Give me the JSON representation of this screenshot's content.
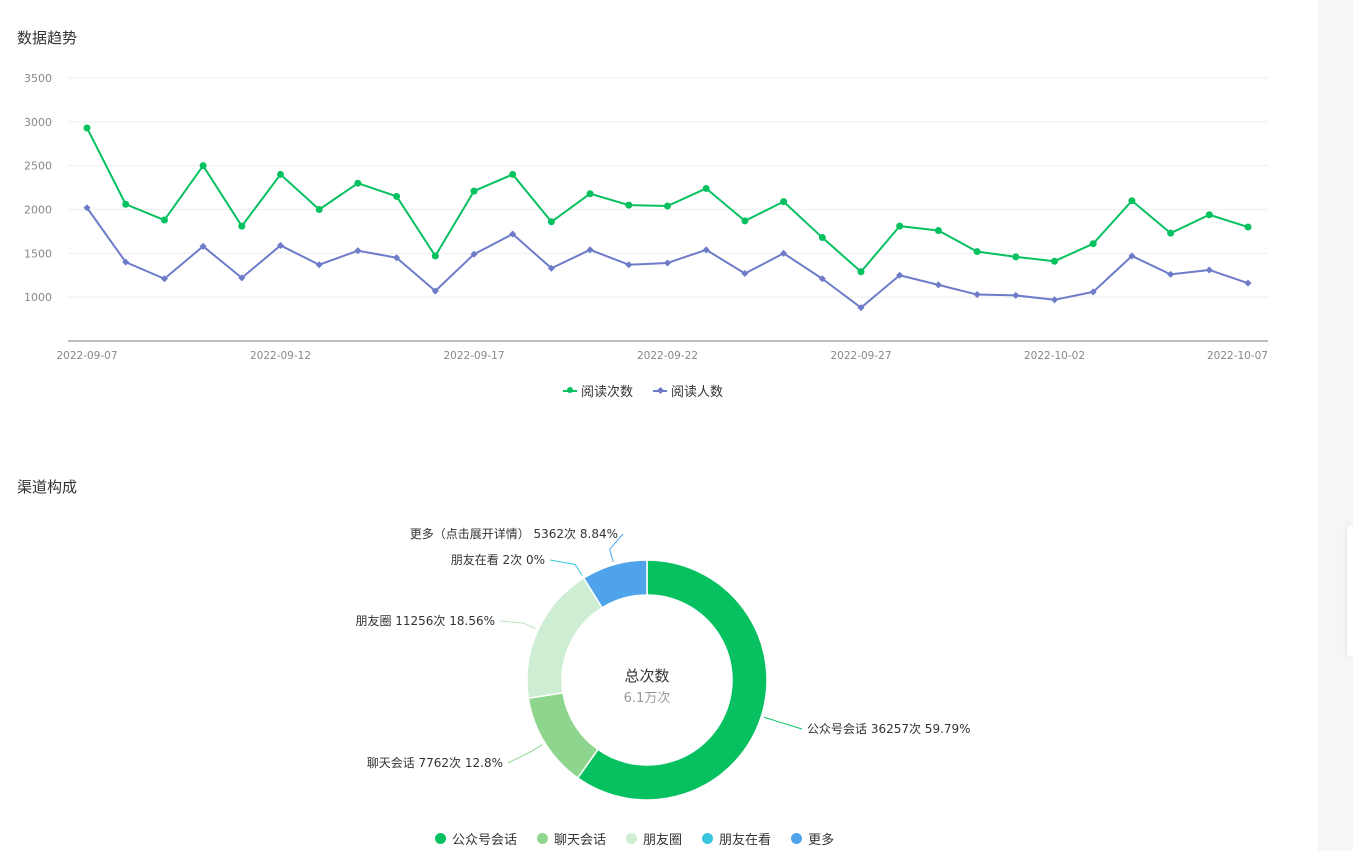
{
  "sections": {
    "trend_title": "数据趋势",
    "channel_title": "渠道构成"
  },
  "colors": {
    "reads": "#07c160",
    "readers": "#6e7bc9",
    "grid": "#eeeeee",
    "axis": "#aaaaaa",
    "tick_text": "#888888",
    "pie": [
      "#07c160",
      "#8ed68e",
      "#cdeed2",
      "#38c6dd",
      "#4fa3ea"
    ]
  },
  "chart_data": [
    {
      "type": "line",
      "title": "数据趋势",
      "x": [
        "2022-09-07",
        "2022-09-08",
        "2022-09-09",
        "2022-09-10",
        "2022-09-11",
        "2022-09-12",
        "2022-09-13",
        "2022-09-14",
        "2022-09-15",
        "2022-09-16",
        "2022-09-17",
        "2022-09-18",
        "2022-09-19",
        "2022-09-20",
        "2022-09-21",
        "2022-09-22",
        "2022-09-23",
        "2022-09-24",
        "2022-09-25",
        "2022-09-26",
        "2022-09-27",
        "2022-09-28",
        "2022-09-29",
        "2022-09-30",
        "2022-10-01",
        "2022-10-02",
        "2022-10-03",
        "2022-10-04",
        "2022-10-05",
        "2022-10-06",
        "2022-10-07"
      ],
      "x_tick_labels": [
        "2022-09-07",
        "2022-09-12",
        "2022-09-17",
        "2022-09-22",
        "2022-09-27",
        "2022-10-02",
        "2022-10-07"
      ],
      "y_ticks": [
        "1000",
        "1500",
        "2000",
        "2500",
        "3000",
        "3500"
      ],
      "ylim": [
        500,
        3500
      ],
      "grid": true,
      "legend_position": "bottom",
      "series": [
        {
          "name": "阅读次数",
          "marker": "circle",
          "values": [
            2930,
            2060,
            1880,
            2500,
            1810,
            2400,
            2000,
            2300,
            2150,
            1470,
            2210,
            2400,
            1860,
            2180,
            2050,
            2040,
            2240,
            1870,
            2090,
            1680,
            1290,
            1810,
            1760,
            1520,
            1460,
            1410,
            1610,
            2100,
            1730,
            1940,
            1800
          ]
        },
        {
          "name": "阅读人数",
          "marker": "diamond",
          "values": [
            2020,
            1400,
            1210,
            1580,
            1220,
            1590,
            1370,
            1530,
            1450,
            1070,
            1490,
            1720,
            1330,
            1540,
            1370,
            1390,
            1540,
            1270,
            1500,
            1210,
            880,
            1250,
            1140,
            1030,
            1020,
            970,
            1060,
            1470,
            1260,
            1310,
            1160
          ]
        }
      ]
    },
    {
      "type": "pie",
      "title": "渠道构成",
      "center_title": "总次数",
      "center_value": "6.1万次",
      "slices": [
        {
          "name": "公众号会话",
          "value": 36257,
          "label": "公众号会话 36257次 59.79%"
        },
        {
          "name": "聊天会话",
          "value": 7762,
          "label": "聊天会话 7762次 12.8%"
        },
        {
          "name": "朋友圈",
          "value": 11256,
          "label": "朋友圈 11256次 18.56%"
        },
        {
          "name": "朋友在看",
          "value": 2,
          "label": "朋友在看 2次 0%"
        },
        {
          "name": "更多",
          "value": 5362,
          "label": "更多（点击展开详情） 5362次 8.84%"
        }
      ]
    }
  ]
}
